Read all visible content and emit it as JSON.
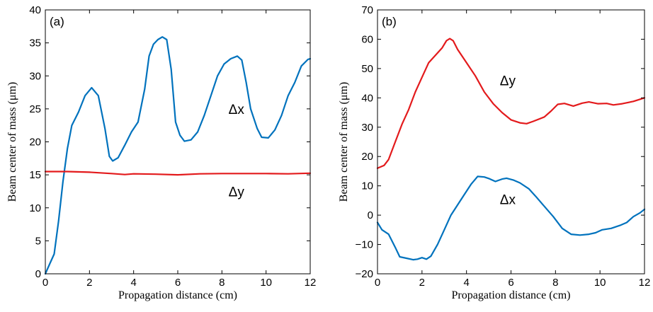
{
  "chart_data": [
    {
      "type": "line",
      "panel_label": "(a)",
      "xlabel": "Propagation distance (cm)",
      "ylabel": "Beam center of mass (μm)",
      "xlim": [
        0,
        12
      ],
      "ylim": [
        0,
        40
      ],
      "xticks": [
        0,
        2,
        4,
        6,
        8,
        10,
        12
      ],
      "yticks": [
        0,
        5,
        10,
        15,
        20,
        25,
        30,
        35,
        40
      ],
      "grid": false,
      "series": [
        {
          "name": "Δx",
          "color": "#0072bd",
          "points": [
            [
              0,
              0
            ],
            [
              0.2,
              1.5
            ],
            [
              0.4,
              3
            ],
            [
              0.6,
              8
            ],
            [
              0.8,
              14
            ],
            [
              1.0,
              19
            ],
            [
              1.2,
              22.5
            ],
            [
              1.5,
              24.5
            ],
            [
              1.8,
              27
            ],
            [
              2.1,
              28.2
            ],
            [
              2.4,
              27
            ],
            [
              2.7,
              22
            ],
            [
              2.9,
              17.8
            ],
            [
              3.05,
              17.1
            ],
            [
              3.3,
              17.6
            ],
            [
              3.6,
              19.5
            ],
            [
              3.9,
              21.5
            ],
            [
              4.2,
              23
            ],
            [
              4.5,
              28
            ],
            [
              4.7,
              33
            ],
            [
              4.9,
              34.8
            ],
            [
              5.1,
              35.5
            ],
            [
              5.3,
              35.9
            ],
            [
              5.5,
              35.5
            ],
            [
              5.7,
              31
            ],
            [
              5.9,
              23
            ],
            [
              6.1,
              21
            ],
            [
              6.3,
              20.1
            ],
            [
              6.6,
              20.3
            ],
            [
              6.9,
              21.5
            ],
            [
              7.2,
              24
            ],
            [
              7.5,
              27
            ],
            [
              7.8,
              30
            ],
            [
              8.1,
              31.8
            ],
            [
              8.4,
              32.6
            ],
            [
              8.7,
              33
            ],
            [
              8.9,
              32.4
            ],
            [
              9.1,
              29
            ],
            [
              9.3,
              25
            ],
            [
              9.6,
              22
            ],
            [
              9.8,
              20.7
            ],
            [
              10.1,
              20.6
            ],
            [
              10.4,
              21.8
            ],
            [
              10.7,
              24
            ],
            [
              11.0,
              27
            ],
            [
              11.3,
              29
            ],
            [
              11.6,
              31.5
            ],
            [
              11.9,
              32.5
            ],
            [
              12,
              32.6
            ]
          ]
        },
        {
          "name": "Δy",
          "color": "#e31a1c",
          "points": [
            [
              0,
              15.5
            ],
            [
              1,
              15.5
            ],
            [
              2,
              15.4
            ],
            [
              3,
              15.2
            ],
            [
              3.6,
              15.05
            ],
            [
              4,
              15.15
            ],
            [
              5,
              15.1
            ],
            [
              6,
              15.0
            ],
            [
              7,
              15.15
            ],
            [
              8,
              15.2
            ],
            [
              9,
              15.2
            ],
            [
              10,
              15.2
            ],
            [
              11,
              15.15
            ],
            [
              12,
              15.25
            ]
          ]
        }
      ],
      "annotations": [
        {
          "text": "Δx",
          "x": 8.3,
          "y": 25
        },
        {
          "text": "Δy",
          "x": 8.3,
          "y": 12.5
        }
      ]
    },
    {
      "type": "line",
      "panel_label": "(b)",
      "xlabel": "Propagation distance (cm)",
      "ylabel": "Beam center of mass (μm)",
      "xlim": [
        0,
        12
      ],
      "ylim": [
        -20,
        70
      ],
      "xticks": [
        0,
        2,
        4,
        6,
        8,
        10,
        12
      ],
      "yticks": [
        -20,
        -10,
        0,
        10,
        20,
        30,
        40,
        50,
        60,
        70
      ],
      "grid": false,
      "series": [
        {
          "name": "Δy",
          "color": "#e31a1c",
          "points": [
            [
              0,
              16
            ],
            [
              0.3,
              17
            ],
            [
              0.5,
              19
            ],
            [
              0.8,
              25
            ],
            [
              1.1,
              31
            ],
            [
              1.4,
              36
            ],
            [
              1.7,
              42
            ],
            [
              2.0,
              47
            ],
            [
              2.3,
              52
            ],
            [
              2.6,
              54.5
            ],
            [
              2.9,
              57
            ],
            [
              3.1,
              59.5
            ],
            [
              3.25,
              60.2
            ],
            [
              3.4,
              59.5
            ],
            [
              3.6,
              56.5
            ],
            [
              4.0,
              52
            ],
            [
              4.4,
              47.5
            ],
            [
              4.8,
              42
            ],
            [
              5.2,
              38
            ],
            [
              5.6,
              35
            ],
            [
              6.0,
              32.5
            ],
            [
              6.4,
              31.5
            ],
            [
              6.7,
              31.2
            ],
            [
              7.0,
              32
            ],
            [
              7.5,
              33.5
            ],
            [
              7.8,
              35.5
            ],
            [
              8.1,
              37.8
            ],
            [
              8.4,
              38.1
            ],
            [
              8.8,
              37.2
            ],
            [
              9.2,
              38.2
            ],
            [
              9.5,
              38.6
            ],
            [
              9.9,
              38
            ],
            [
              10.3,
              38.1
            ],
            [
              10.6,
              37.6
            ],
            [
              11.0,
              38
            ],
            [
              11.5,
              38.8
            ],
            [
              12,
              40
            ]
          ]
        },
        {
          "name": "Δx",
          "color": "#0072bd",
          "points": [
            [
              0,
              -2.5
            ],
            [
              0.2,
              -5
            ],
            [
              0.5,
              -6.5
            ],
            [
              0.8,
              -11
            ],
            [
              1.0,
              -14.2
            ],
            [
              1.3,
              -14.7
            ],
            [
              1.6,
              -15.2
            ],
            [
              1.8,
              -15
            ],
            [
              2.0,
              -14.5
            ],
            [
              2.2,
              -15
            ],
            [
              2.4,
              -14
            ],
            [
              2.7,
              -10
            ],
            [
              3.0,
              -5
            ],
            [
              3.3,
              0
            ],
            [
              3.6,
              3.5
            ],
            [
              3.9,
              7
            ],
            [
              4.2,
              10.5
            ],
            [
              4.5,
              13.2
            ],
            [
              4.8,
              13
            ],
            [
              5.0,
              12.5
            ],
            [
              5.3,
              11.5
            ],
            [
              5.6,
              12.3
            ],
            [
              5.8,
              12.6
            ],
            [
              6.1,
              12
            ],
            [
              6.4,
              11
            ],
            [
              6.8,
              9
            ],
            [
              7.1,
              6.5
            ],
            [
              7.5,
              3
            ],
            [
              7.9,
              -0.5
            ],
            [
              8.3,
              -4.5
            ],
            [
              8.7,
              -6.5
            ],
            [
              9.1,
              -6.8
            ],
            [
              9.5,
              -6.5
            ],
            [
              9.8,
              -6
            ],
            [
              10.1,
              -5
            ],
            [
              10.5,
              -4.5
            ],
            [
              10.9,
              -3.5
            ],
            [
              11.2,
              -2.5
            ],
            [
              11.5,
              -0.5
            ],
            [
              11.8,
              0.8
            ],
            [
              12,
              2
            ]
          ]
        }
      ],
      "annotations": [
        {
          "text": "Δy",
          "x": 5.5,
          "y": 46
        },
        {
          "text": "Δx",
          "x": 5.5,
          "y": 5.5
        }
      ]
    }
  ]
}
